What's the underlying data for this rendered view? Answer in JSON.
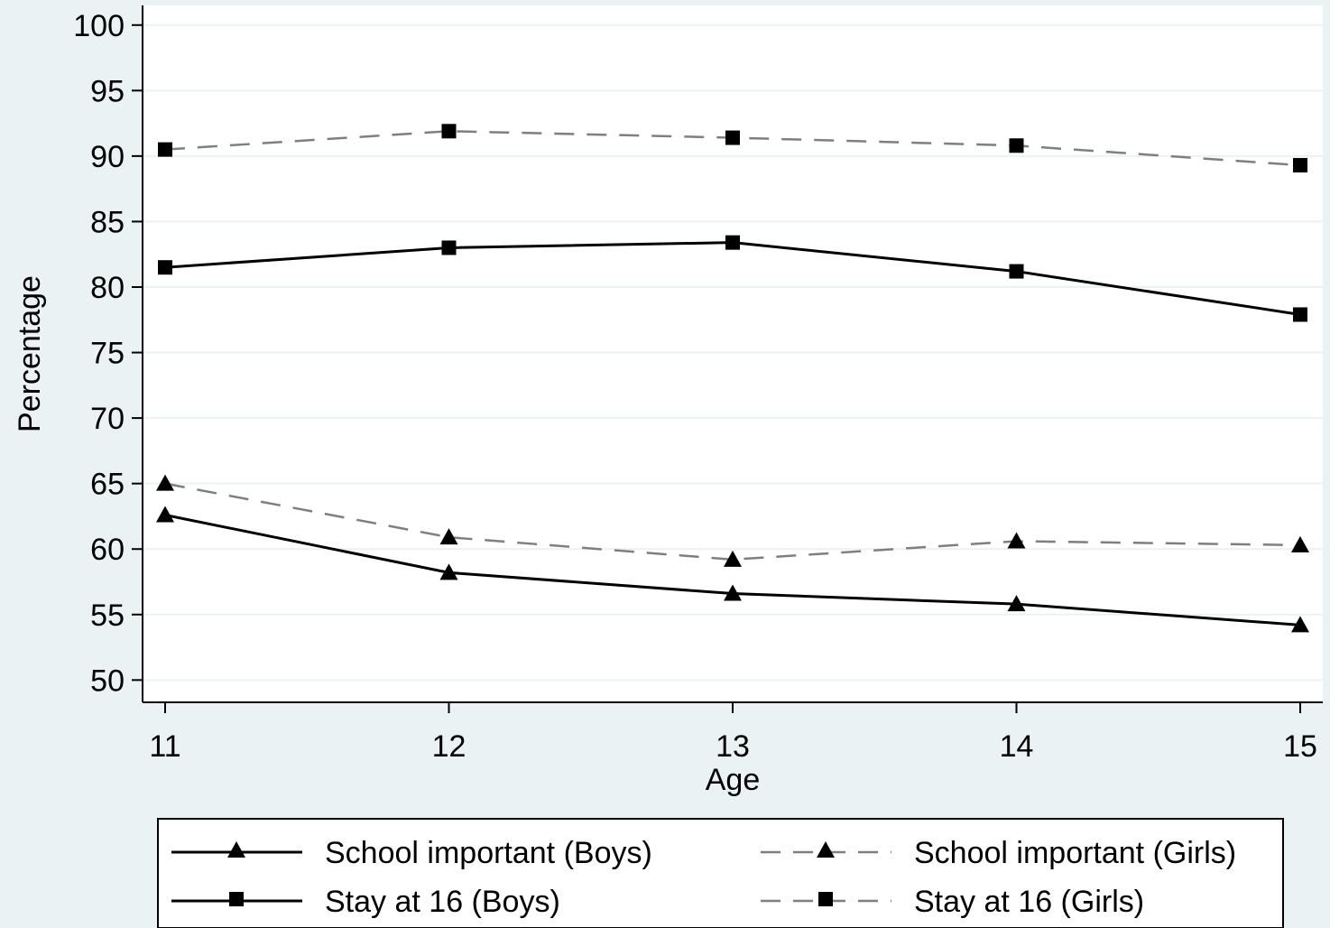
{
  "chart_data": {
    "type": "line",
    "xlabel": "Age",
    "ylabel": "Percentage",
    "x": [
      11,
      12,
      13,
      14,
      15
    ],
    "x_ticks": [
      "11",
      "12",
      "13",
      "14",
      "15"
    ],
    "xlim": [
      10.92,
      15.08
    ],
    "ylim": [
      48.3,
      101.5
    ],
    "y_ticks": [
      "50",
      "55",
      "60",
      "65",
      "70",
      "75",
      "80",
      "85",
      "90",
      "95",
      "100"
    ],
    "grid": "horizontal",
    "legend_position": "bottom",
    "series": [
      {
        "name": "School important (Boys)",
        "values": [
          62.6,
          58.2,
          56.6,
          55.8,
          54.2
        ],
        "marker": "triangle",
        "dash": "solid",
        "color": "#000000"
      },
      {
        "name": "School important (Girls)",
        "values": [
          65.0,
          60.9,
          59.2,
          60.6,
          60.3
        ],
        "marker": "triangle",
        "dash": "dashed",
        "color": "#7f7f7f"
      },
      {
        "name": "Stay at 16 (Boys)",
        "values": [
          81.5,
          83.0,
          83.4,
          81.2,
          77.9
        ],
        "marker": "square",
        "dash": "solid",
        "color": "#000000"
      },
      {
        "name": "Stay at 16 (Girls)",
        "values": [
          90.5,
          91.9,
          91.4,
          90.8,
          89.3
        ],
        "marker": "square",
        "dash": "dashed",
        "color": "#7f7f7f"
      }
    ],
    "colors": {
      "background": "#eaf2f3",
      "plot_area": "#ffffff",
      "grid": "#eaf2f3",
      "axis": "#000000"
    }
  }
}
